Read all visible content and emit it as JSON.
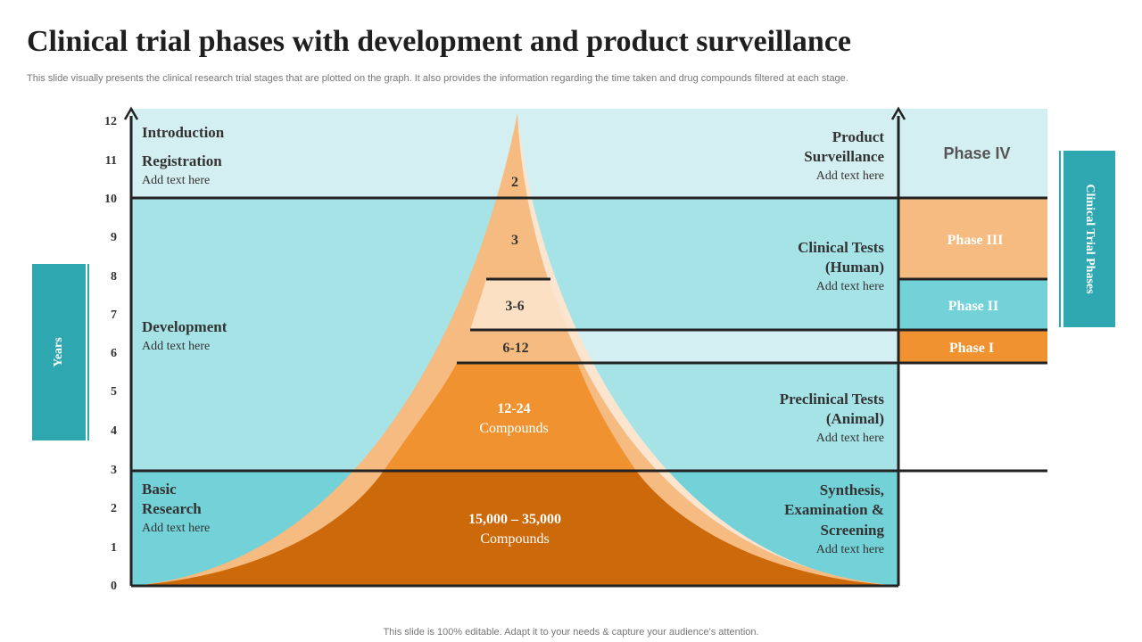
{
  "title": "Clinical trial phases with development and product surveillance",
  "subtitle": "This slide visually presents the clinical research trial stages that are plotted on the graph. It also provides the information regarding the time taken and drug compounds filtered at each stage.",
  "footer": "This slide is 100% editable. Adapt it to your needs & capture your audience’s attention.",
  "side_tabs": {
    "years": "Years",
    "phases": "Clinical Trial Phases"
  },
  "axis": {
    "ticks": [
      "0",
      "1",
      "2",
      "3",
      "4",
      "5",
      "6",
      "7",
      "8",
      "9",
      "10",
      "11",
      "12"
    ]
  },
  "stages_left": [
    {
      "title": "Introduction"
    },
    {
      "title": "Registration",
      "text": "Add text  here"
    },
    {
      "title": "Development",
      "text": "Add text  here"
    },
    {
      "title": "Basic",
      "title2": "Research",
      "text": "Add text  here"
    }
  ],
  "stages_right": [
    {
      "line1": "Product",
      "line2": "Surveillance",
      "text": "Add text  here"
    },
    {
      "line1": "Clinical Tests",
      "line2": "(Human)",
      "text": "Add text  here"
    },
    {
      "line1": "Preclinical Tests",
      "line2": "(Animal)",
      "text": "Add text  here"
    },
    {
      "line1": "Synthesis,",
      "line2": "Examination &",
      "line3": "Screening",
      "text": "Add text  here"
    }
  ],
  "funnel": [
    {
      "value": "2"
    },
    {
      "value": "3"
    },
    {
      "value": "3-6"
    },
    {
      "value": "6-12"
    },
    {
      "value": "12-24",
      "unit": "Compounds"
    },
    {
      "value": "15,000 – 35,000",
      "unit": "Compounds"
    }
  ],
  "phases": [
    {
      "label": "Phase IV",
      "color": "#d4eff1"
    },
    {
      "label": "Phase III",
      "color": "#f5bb80"
    },
    {
      "label": "Phase II",
      "color": "#73d1d8"
    },
    {
      "label": "Phase I",
      "color": "#f0922f"
    }
  ],
  "colors": {
    "band_light": "#d4eff1",
    "band_mid": "#a6e3e7",
    "band_dark": "#73d1d8",
    "orange_dark": "#cc6a0b",
    "orange_mid": "#f0922f",
    "orange_light": "#f5bb80",
    "cream": "#fbe5cf",
    "teal_tab": "#2ea7b0"
  }
}
